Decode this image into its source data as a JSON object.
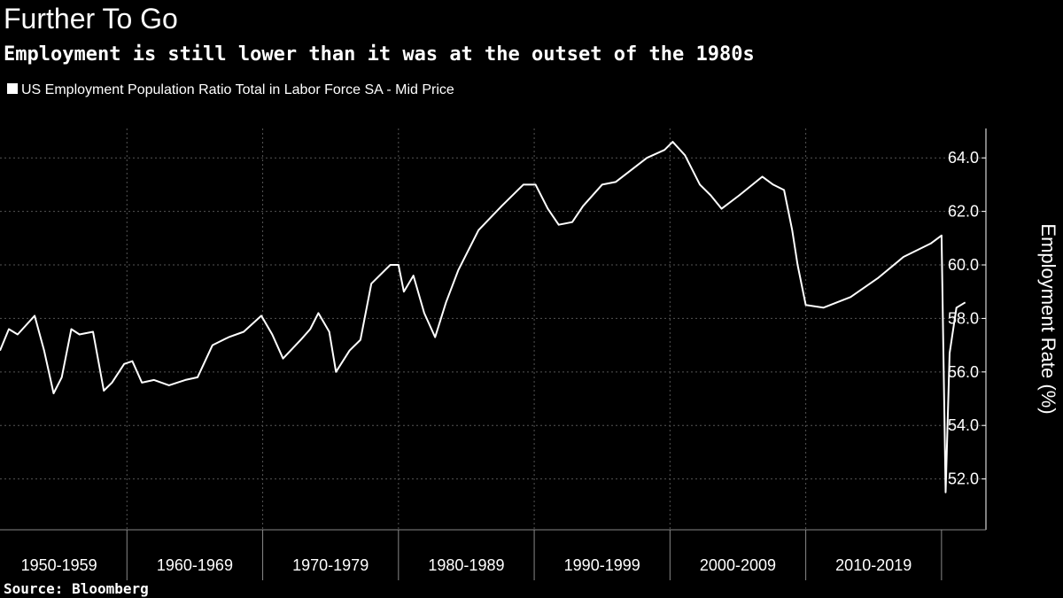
{
  "chart_data": {
    "type": "line",
    "title": "Further To Go",
    "subtitle": "Employment is still lower than it was at the outset of the 1980s",
    "source": "Source: Bloomberg",
    "y_label": "Employment Rate (%)",
    "series": [
      {
        "name": "US Employment Population Ratio Total in Labor Force SA - Mid Price",
        "color": "#ffffff",
        "x": [
          1950.65,
          1951.3,
          1951.95,
          1953.2,
          1953.9,
          1954.6,
          1955.2,
          1955.9,
          1956.5,
          1957.5,
          1958.3,
          1958.9,
          1959.8,
          1960.4,
          1961.1,
          1962.0,
          1963.1,
          1964.3,
          1965.2,
          1966.3,
          1967.5,
          1968.6,
          1969.9,
          1970.7,
          1971.5,
          1972.8,
          1973.5,
          1974.1,
          1974.9,
          1975.4,
          1976.4,
          1977.2,
          1978.0,
          1979.4,
          1980.0,
          1980.4,
          1981.1,
          1981.9,
          1982.7,
          1983.5,
          1984.4,
          1985.9,
          1987.6,
          1989.2,
          1990.1,
          1991.0,
          1991.8,
          1992.8,
          1993.6,
          1995.0,
          1996.0,
          1998.3,
          1999.6,
          2000.2,
          2001.1,
          2002.2,
          2003.0,
          2003.8,
          2005.1,
          2006.8,
          2007.6,
          2008.4,
          2009.0,
          2009.4,
          2010.0,
          2011.3,
          2012.3,
          2013.3,
          2015.3,
          2017.2,
          2019.2,
          2020.0,
          2020.3,
          2020.6,
          2021.1,
          2021.75
        ],
        "values": [
          56.8,
          57.6,
          57.4,
          58.1,
          56.8,
          55.2,
          55.8,
          57.6,
          57.4,
          57.5,
          55.3,
          55.6,
          56.3,
          56.4,
          55.6,
          55.7,
          55.5,
          55.7,
          55.8,
          57.0,
          57.3,
          57.5,
          58.1,
          57.4,
          56.5,
          57.2,
          57.6,
          58.2,
          57.5,
          56.0,
          56.8,
          57.2,
          59.3,
          60.0,
          60.0,
          59.0,
          59.6,
          58.2,
          57.3,
          58.6,
          59.8,
          61.3,
          62.2,
          63.0,
          63.0,
          62.1,
          61.5,
          61.6,
          62.2,
          63.0,
          63.1,
          64.0,
          64.3,
          64.6,
          64.1,
          63.0,
          62.6,
          62.1,
          62.6,
          63.3,
          63.0,
          62.8,
          61.3,
          60.0,
          58.5,
          58.4,
          58.6,
          58.8,
          59.5,
          60.3,
          60.8,
          61.1,
          51.5,
          56.7,
          58.4,
          58.6
        ]
      }
    ],
    "xlim": [
      1950.65,
      2022.75
    ],
    "xticks": [
      {
        "value": 1950,
        "label": "1950-1959"
      },
      {
        "value": 1960,
        "label": "1960-1969"
      },
      {
        "value": 1970,
        "label": "1970-1979"
      },
      {
        "value": 1980,
        "label": "1980-1989"
      },
      {
        "value": 1990,
        "label": "1990-1999"
      },
      {
        "value": 2000,
        "label": "2000-2009"
      },
      {
        "value": 2010,
        "label": "2010-2019"
      }
    ],
    "ylim": [
      50.1,
      65.1
    ],
    "yticks": [
      {
        "value": 52,
        "label": "52.0"
      },
      {
        "value": 54,
        "label": "54.0"
      },
      {
        "value": 56,
        "label": "56.0"
      },
      {
        "value": 58,
        "label": "58.0"
      },
      {
        "value": 60,
        "label": "60.0"
      },
      {
        "value": 62,
        "label": "62.0"
      },
      {
        "value": 64,
        "label": "64.0"
      }
    ],
    "grid": true
  }
}
